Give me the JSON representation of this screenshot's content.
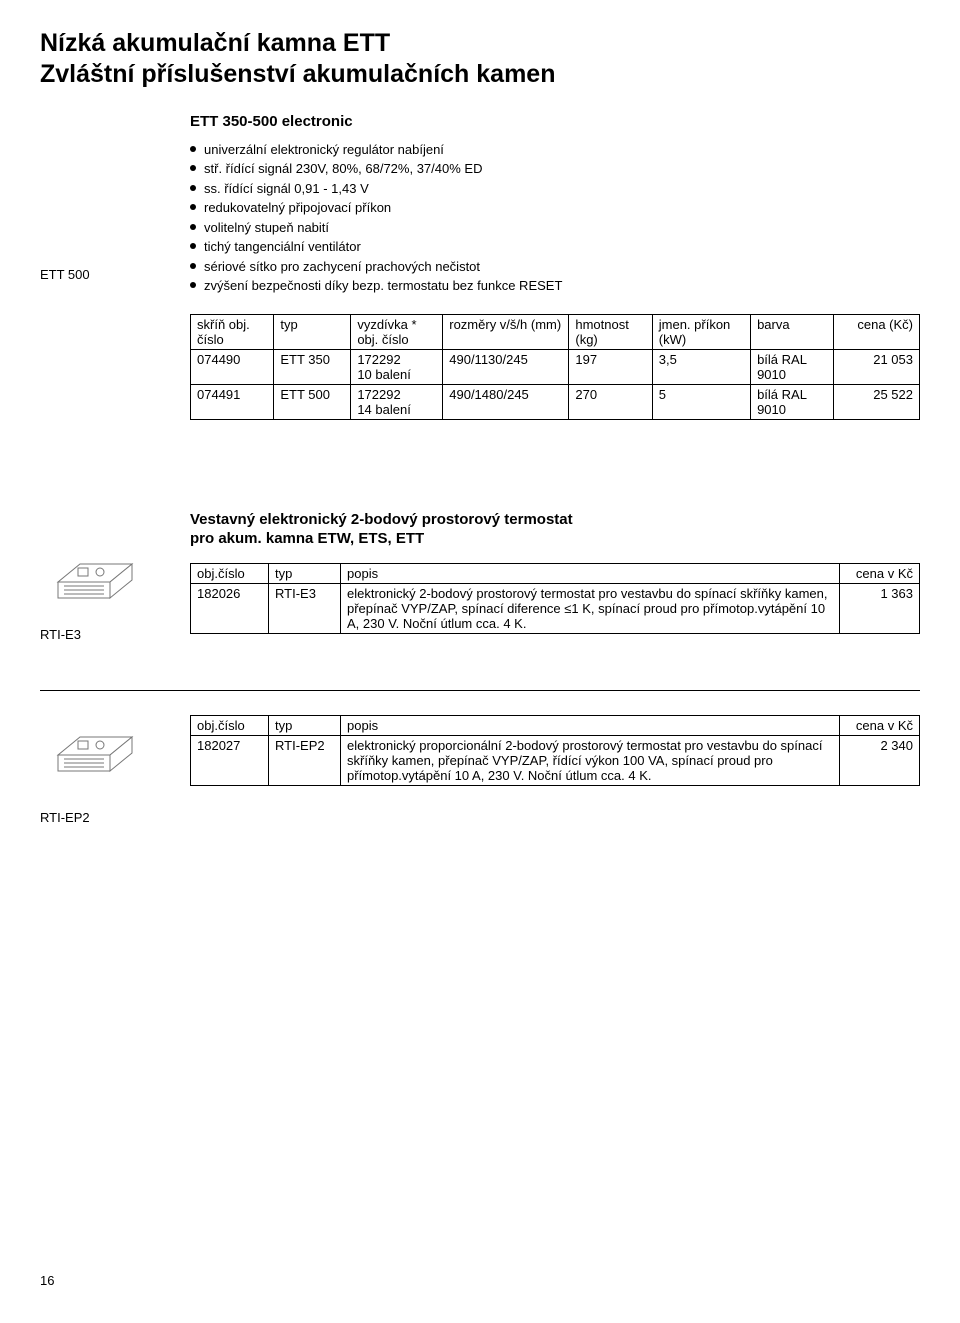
{
  "title_line1": "Nízká akumulační kamna ETT",
  "title_line2": "Zvláštní příslušenství akumulačních kamen",
  "section1": {
    "left_label": "ETT 500",
    "subhead": "ETT 350-500 electronic",
    "bullets": [
      "univerzální elektronický regulátor nabíjení",
      "stř. řídící signál 230V, 80%, 68/72%, 37/40% ED",
      "ss. řídící signál 0,91 - 1,43 V",
      "redukovatelný připojovací příkon",
      "volitelný stupeň nabití",
      "tichý tangenciální ventilátor",
      "sériové sítko pro zachycení prachových nečistot",
      "zvýšení bezpečnosti díky bezp. termostatu bez funkce RESET"
    ],
    "table": {
      "col_widths": [
        "78px",
        "72px",
        "86px",
        "118px",
        "78px",
        "92px",
        "78px",
        "80px"
      ],
      "headers": [
        "skříň obj. číslo",
        "typ",
        "vyzdívka * obj. číslo",
        "rozměry v/š/h (mm)",
        "hmotnost (kg)",
        "jmen. příkon (kW)",
        "barva",
        "cena (Kč)"
      ],
      "rows": [
        [
          "074490",
          "ETT 350",
          "172292\n10 balení",
          "490/1130/245",
          "197",
          "3,5",
          "bílá RAL 9010",
          "21 053"
        ],
        [
          "074491",
          "ETT 500",
          "172292\n14 balení",
          "490/1480/245",
          "270",
          "5",
          "bílá RAL 9010",
          "25 522"
        ]
      ]
    }
  },
  "section2": {
    "subhead_line1": "Vestavný elektronický 2-bodový prostorový termostat",
    "subhead_line2": "pro akum. kamna ETW, ETS, ETT",
    "left_label": "RTI-E3",
    "table": {
      "col_widths": [
        "78px",
        "72px",
        "auto",
        "80px"
      ],
      "headers": [
        "obj.číslo",
        "typ",
        "popis",
        "cena v Kč"
      ],
      "rows": [
        [
          "182026",
          "RTI-E3",
          "elektronický 2-bodový prostorový termostat pro vestavbu do spínací skříňky kamen, přepínač VYP/ZAP, spínací diference ≤1 K, spínací proud pro přímotop.vytápění 10 A, 230 V. Noční útlum cca. 4 K.",
          "1 363"
        ]
      ]
    }
  },
  "section3": {
    "left_label": "RTI-EP2",
    "table": {
      "col_widths": [
        "78px",
        "72px",
        "auto",
        "80px"
      ],
      "headers": [
        "obj.číslo",
        "typ",
        "popis",
        "cena v Kč"
      ],
      "rows": [
        [
          "182027",
          "RTI-EP2",
          "elektronický proporcionální 2-bodový prostorový termostat pro vestavbu do spínací skříňky kamen, přepínač VYP/ZAP, řídící výkon 100 VA, spínací proud pro přímotop.vytápění 10 A, 230 V. Noční útlum cca. 4 K.",
          "2 340"
        ]
      ]
    }
  },
  "page_number": "16",
  "icon_stroke": "#777",
  "icon_fill": "#fff"
}
